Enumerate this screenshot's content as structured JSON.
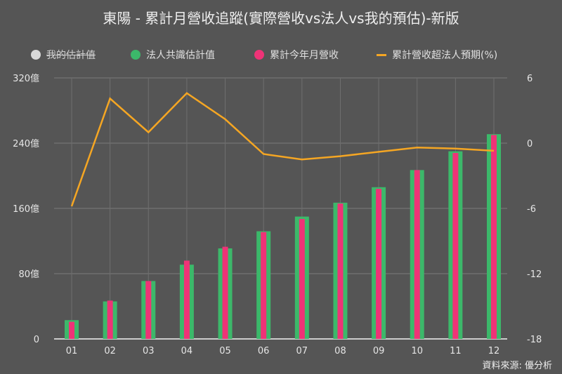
{
  "title": "東陽 - 累計月營收追蹤(實際營收vs法人vs我的預估)-新版",
  "legend": [
    {
      "label": "我的估計值",
      "color": "#d9d9d9",
      "shape": "dot",
      "disabled": true
    },
    {
      "label": "法人共識估計值",
      "color": "#3cb86a",
      "shape": "dot",
      "disabled": false
    },
    {
      "label": "累計今年月營收",
      "color": "#ee3377",
      "shape": "dot",
      "disabled": false
    },
    {
      "label": "累計營收超法人預期(%)",
      "color": "#f5a623",
      "shape": "line",
      "disabled": false
    }
  ],
  "source": "資料來源: 優分析",
  "colors": {
    "background": "#555555",
    "consensus": "#3cb86a",
    "actual": "#ee3377",
    "line": "#f5a623",
    "grid": "#777777"
  },
  "chart_data": {
    "type": "bar",
    "title": "東陽 - 累計月營收追蹤(實際營收vs法人vs我的預估)-新版",
    "categories": [
      "01",
      "02",
      "03",
      "04",
      "05",
      "06",
      "07",
      "08",
      "09",
      "10",
      "11",
      "12"
    ],
    "series": [
      {
        "name": "法人共識估計值",
        "type": "bar",
        "axis": "left",
        "values": [
          23,
          46,
          71,
          91,
          111,
          132,
          150,
          167,
          186,
          207,
          230,
          251
        ]
      },
      {
        "name": "累計今年月營收",
        "type": "bar",
        "axis": "left",
        "values": [
          21,
          47,
          71,
          96,
          113,
          131,
          147,
          166,
          184,
          207,
          228,
          250
        ]
      },
      {
        "name": "累計營收超法人預期(%)",
        "type": "line",
        "axis": "right",
        "values": [
          -5.8,
          4.1,
          1.0,
          4.6,
          2.2,
          -1.0,
          -1.5,
          -1.2,
          -0.8,
          -0.4,
          -0.5,
          -0.7
        ]
      }
    ],
    "yaxis_left": {
      "ticks": [
        "0",
        "80億",
        "160億",
        "240億",
        "320億"
      ],
      "range": [
        0,
        320
      ]
    },
    "yaxis_right": {
      "ticks": [
        "-18",
        "-12",
        "-6",
        "0",
        "6"
      ],
      "range": [
        -18,
        6
      ]
    },
    "xlabel": "",
    "ylabel": "",
    "grid": true,
    "legend_position": "top"
  }
}
